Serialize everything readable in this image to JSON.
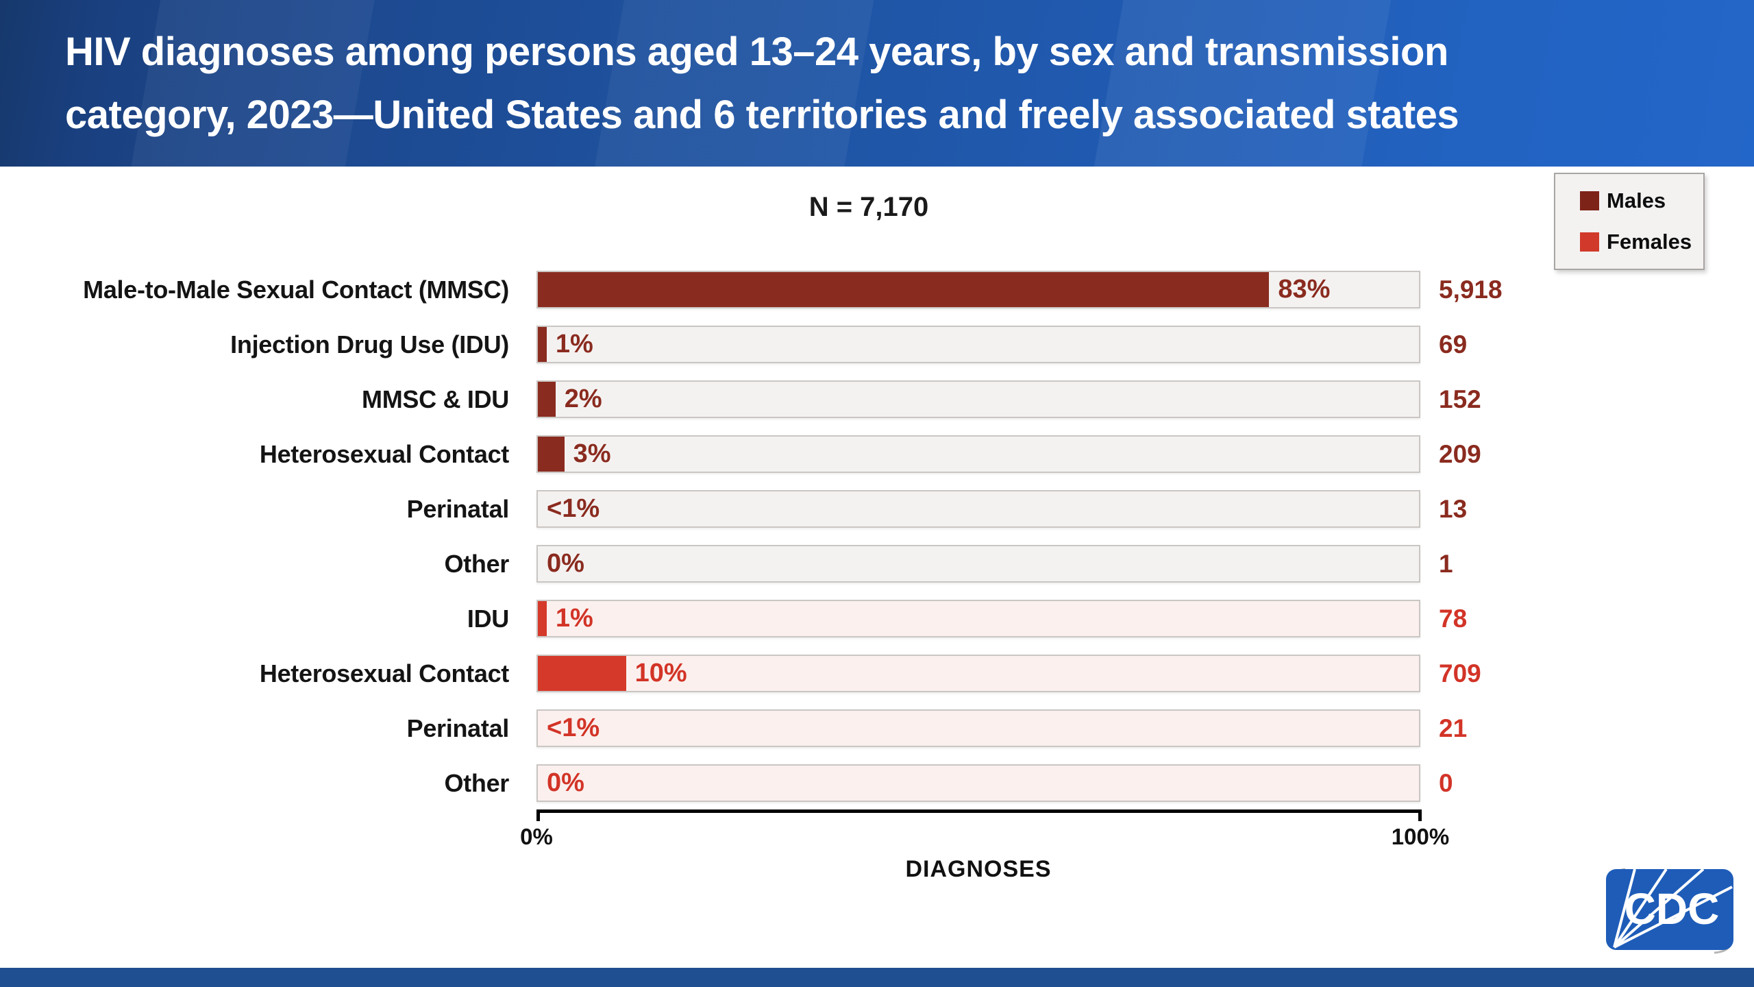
{
  "header": {
    "title_line1": "HIV diagnoses among persons aged 13–24 years, by sex and transmission",
    "title_line2": "category, 2023—United States and 6 territories and freely associated states"
  },
  "legend": {
    "items": [
      {
        "label": "Males",
        "color": "#7e2318"
      },
      {
        "label": "Females",
        "color": "#d13a2b"
      }
    ]
  },
  "chart_data": {
    "type": "bar",
    "orientation": "horizontal",
    "title": "N = 7,170",
    "total_n": "7,170",
    "xlabel": "DIAGNOSES",
    "xlim": [
      0,
      100
    ],
    "x_tick_labels": [
      "0%",
      "100%"
    ],
    "grid": false,
    "legend_position": "top-right",
    "series_colors": {
      "Males": "#8a2b1f",
      "Females": "#d5392a"
    },
    "track_colors": {
      "Males": "#f4f2f1",
      "Females": "#fbf0ee"
    },
    "rows": [
      {
        "category": "Male-to-Male Sexual Contact (MMSC)",
        "series": "Males",
        "pct": 83,
        "pct_label": "83%",
        "count": "5,918"
      },
      {
        "category": "Injection Drug Use (IDU)",
        "series": "Males",
        "pct": 1,
        "pct_label": "1%",
        "count": "69"
      },
      {
        "category": "MMSC & IDU",
        "series": "Males",
        "pct": 2,
        "pct_label": "2%",
        "count": "152"
      },
      {
        "category": "Heterosexual Contact",
        "series": "Males",
        "pct": 3,
        "pct_label": "3%",
        "count": "209"
      },
      {
        "category": "Perinatal",
        "series": "Males",
        "pct": 0.5,
        "pct_label": "<1%",
        "count": "13"
      },
      {
        "category": "Other",
        "series": "Males",
        "pct": 0,
        "pct_label": "0%",
        "count": "1"
      },
      {
        "category": "IDU",
        "series": "Females",
        "pct": 1,
        "pct_label": "1%",
        "count": "78"
      },
      {
        "category": "Heterosexual Contact",
        "series": "Females",
        "pct": 10,
        "pct_label": "10%",
        "count": "709"
      },
      {
        "category": "Perinatal",
        "series": "Females",
        "pct": 0.5,
        "pct_label": "<1%",
        "count": "21"
      },
      {
        "category": "Other",
        "series": "Females",
        "pct": 0,
        "pct_label": "0%",
        "count": "0"
      }
    ]
  },
  "axis": {
    "min_label": "0%",
    "max_label": "100%",
    "title": "DIAGNOSES"
  },
  "footer": {
    "logo_text": "CDC"
  }
}
